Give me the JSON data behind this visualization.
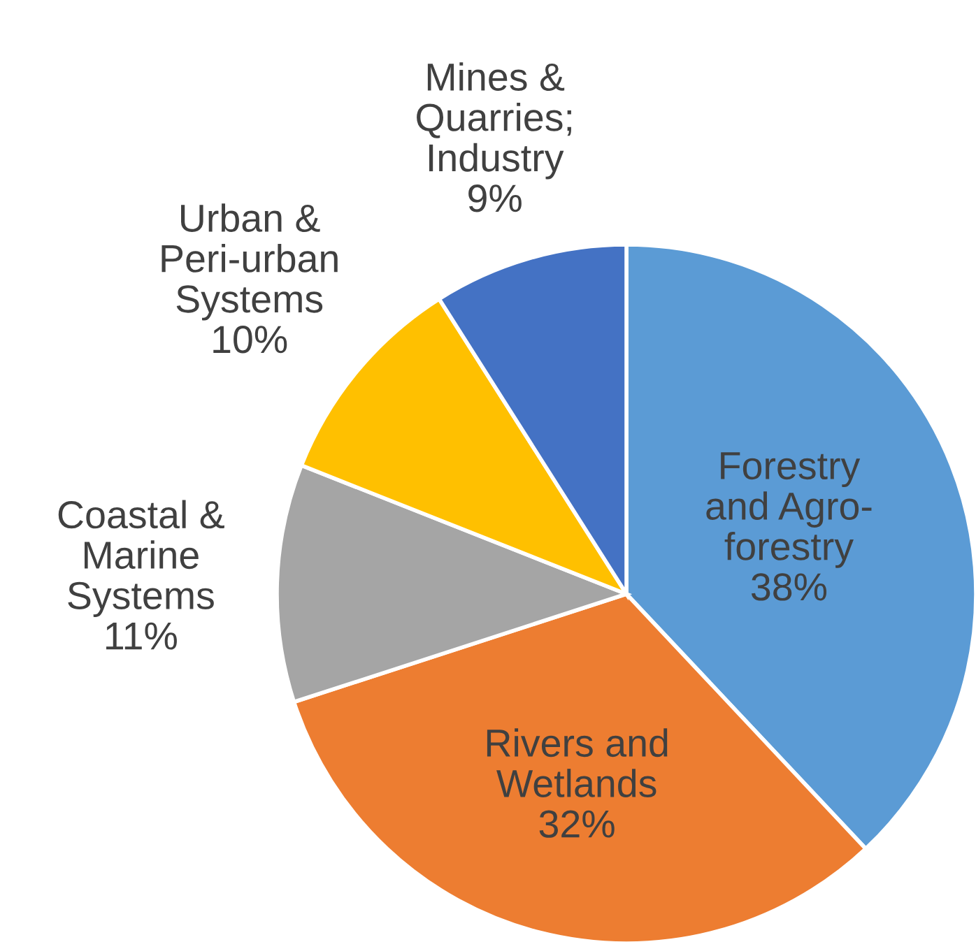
{
  "chart_data": {
    "type": "pie",
    "categories": [
      "Forestry\nand Agro-\nforestry",
      "Rivers and\nWetlands",
      "Coastal &\nMarine\nSystems",
      "Urban &\nPeri-urban\nSystems",
      "Mines &\nQuarries;\nIndustry"
    ],
    "values": [
      38,
      32,
      11,
      10,
      9
    ],
    "colors": [
      "#5b9bd5",
      "#ed7d31",
      "#a5a5a5",
      "#ffc000",
      "#4472c4"
    ],
    "value_labels": [
      "38%",
      "32%",
      "11%",
      "10%",
      "9%"
    ]
  }
}
